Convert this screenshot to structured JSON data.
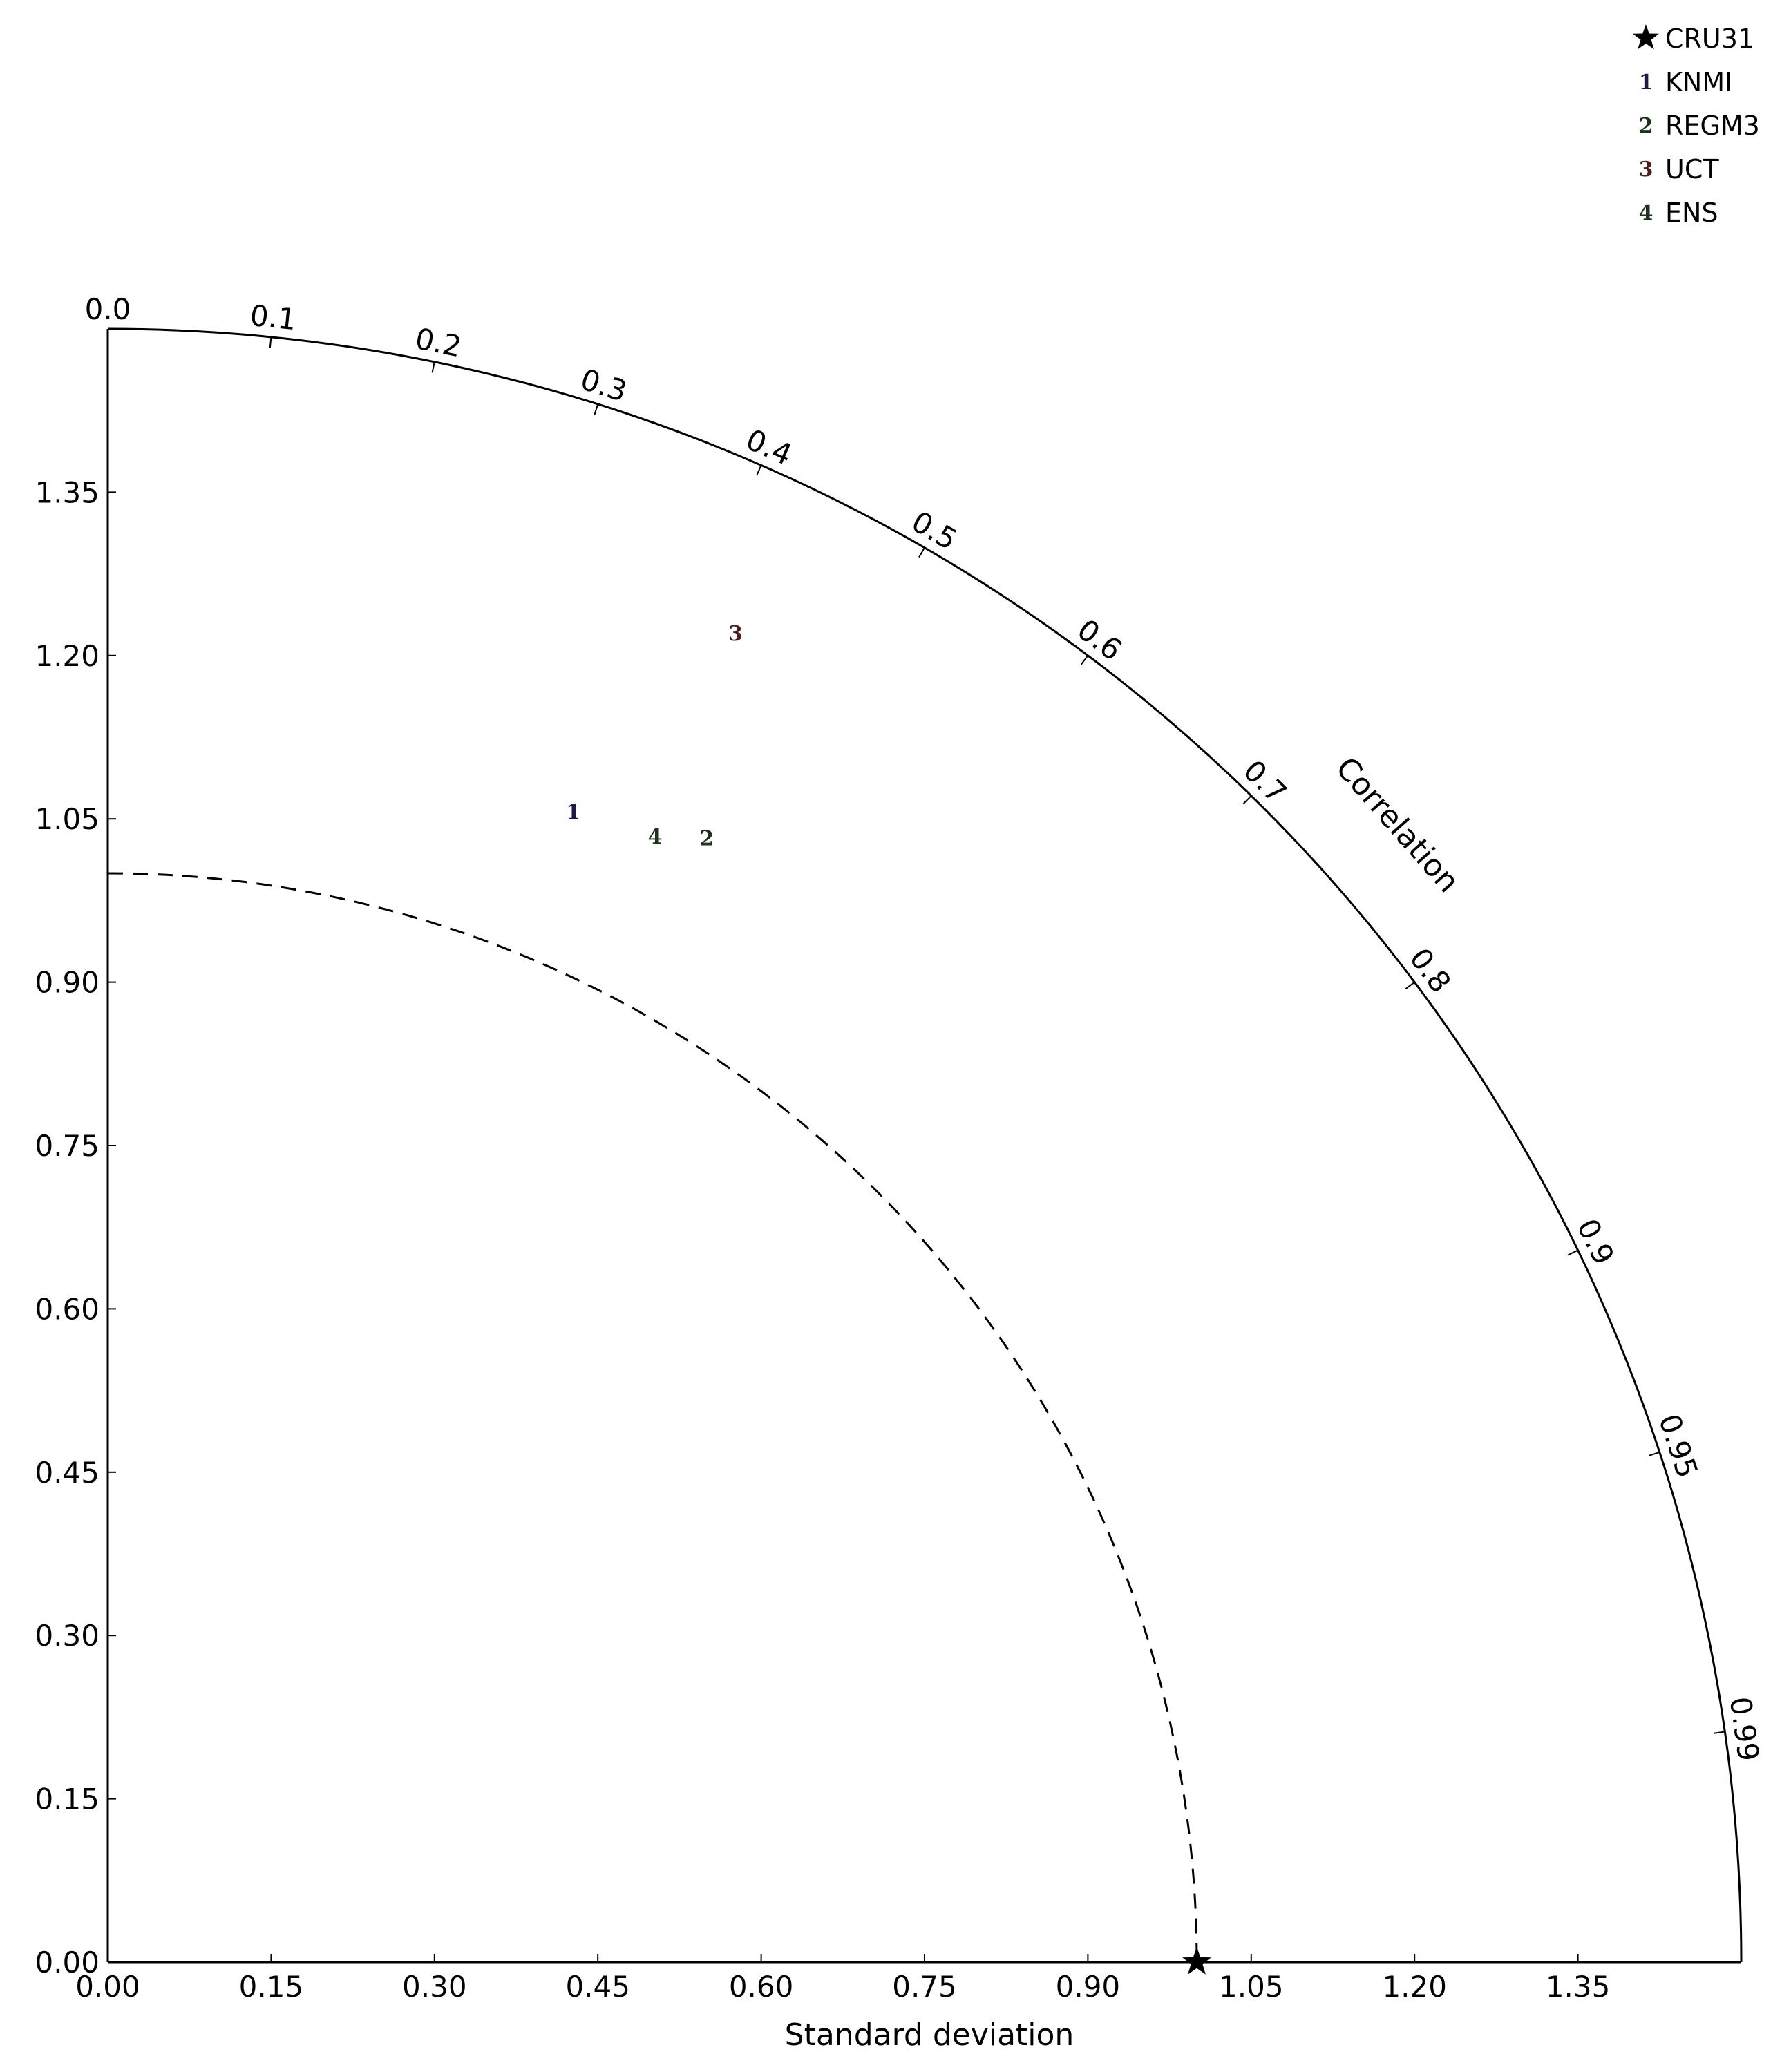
{
  "chart_data": {
    "type": "taylor",
    "xlabel": "Standard deviation",
    "correlation_label": "Correlation",
    "std_range": [
      0,
      1.5
    ],
    "std_ticks": [
      "0.00",
      "0.15",
      "0.30",
      "0.45",
      "0.60",
      "0.75",
      "0.90",
      "1.05",
      "1.20",
      "1.35"
    ],
    "corr_ticks": [
      "0.0",
      "0.1",
      "0.2",
      "0.3",
      "0.4",
      "0.5",
      "0.6",
      "0.7",
      "0.8",
      "0.9",
      "0.95",
      "0.99"
    ],
    "reference": {
      "name": "CRU31",
      "std": 1.0,
      "corr": 1.0
    },
    "reference_arc_std": 1.0,
    "series": [
      {
        "name": "KNMI",
        "label": "1",
        "color": "#1a1a4d",
        "std": 1.14,
        "corr": 0.375
      },
      {
        "name": "REGM3",
        "label": "2",
        "color": "#1a331a",
        "std": 1.17,
        "corr": 0.47
      },
      {
        "name": "UCT",
        "label": "3",
        "color": "#4d1a1a",
        "std": 1.35,
        "corr": 0.427
      },
      {
        "name": "ENS",
        "label": "4",
        "color": "#1a331a",
        "std": 1.15,
        "corr": 0.437
      }
    ],
    "legend_position": "top-right",
    "grid": false
  }
}
